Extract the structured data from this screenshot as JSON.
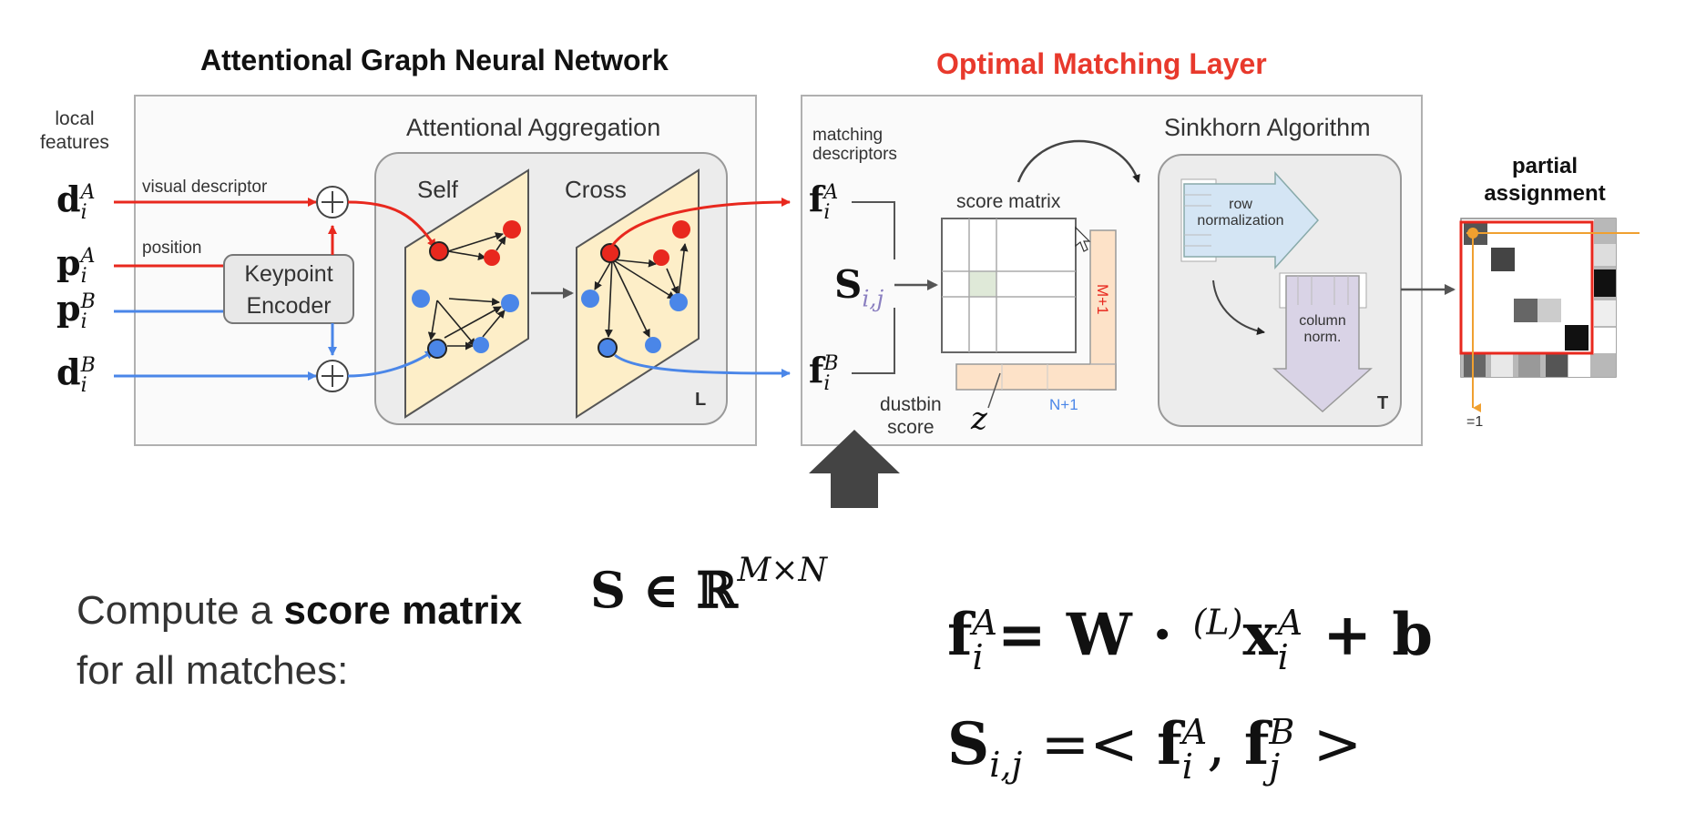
{
  "titles": {
    "agnn": "Attentional Graph Neural Network",
    "oml": "Optimal Matching Layer"
  },
  "left": {
    "local_features": "local\nfeatures",
    "visual_descriptor": "visual descriptor",
    "position": "position",
    "keypoint_encoder": "Keypoint\nEncoder",
    "attentional_aggregation": "Attentional Aggregation",
    "self": "Self",
    "cross": "Cross",
    "L": "L",
    "inputs": [
      {
        "base": "d",
        "sup": "A",
        "sub": "i"
      },
      {
        "base": "p",
        "sup": "A",
        "sub": "i"
      },
      {
        "base": "p",
        "sup": "B",
        "sub": "i"
      },
      {
        "base": "d",
        "sup": "B",
        "sub": "i"
      }
    ]
  },
  "right": {
    "matching_descriptors": "matching\ndescriptors",
    "fA": {
      "base": "f",
      "sup": "A",
      "sub": "i"
    },
    "fB": {
      "base": "f",
      "sup": "B",
      "sub": "i"
    },
    "S": "S",
    "S_sub": "i,j",
    "score_matrix": "score matrix",
    "M1": "M+1",
    "N1": "N+1",
    "dustbin_score": "dustbin\nscore",
    "z": "z",
    "sinkhorn": "Sinkhorn Algorithm",
    "row_norm": "row\nnormalization",
    "col_norm": "column\nnorm.",
    "T": "T",
    "partial_assignment": "partial\nassignment",
    "eq1": "=1"
  },
  "bottom": {
    "text_pre": "Compute a ",
    "text_bold": "score matrix",
    "text_line2": "for all matches:",
    "set_math": "S ∈ ℝ",
    "set_sup": "M×N",
    "eq1_lhs": "f",
    "eq1_rhs": "= W · ",
    "eq1_L": "(L)",
    "eq1_x": "x",
    "eq1_b": " + b",
    "eq2_lhs": "S",
    "eq2_sub": "i,j",
    "eq2_rhs": " =< ",
    "eq2_sep": ", ",
    "eq2_end": " >"
  },
  "colors": {
    "red": "#e8281e",
    "blue": "#4a86e8",
    "panel_border": "#b0b0b0",
    "panel_fill": "#fafafa",
    "inner_fill": "#ececec",
    "plane_fill": "#fdeec8",
    "title_red": "#e8392c"
  }
}
